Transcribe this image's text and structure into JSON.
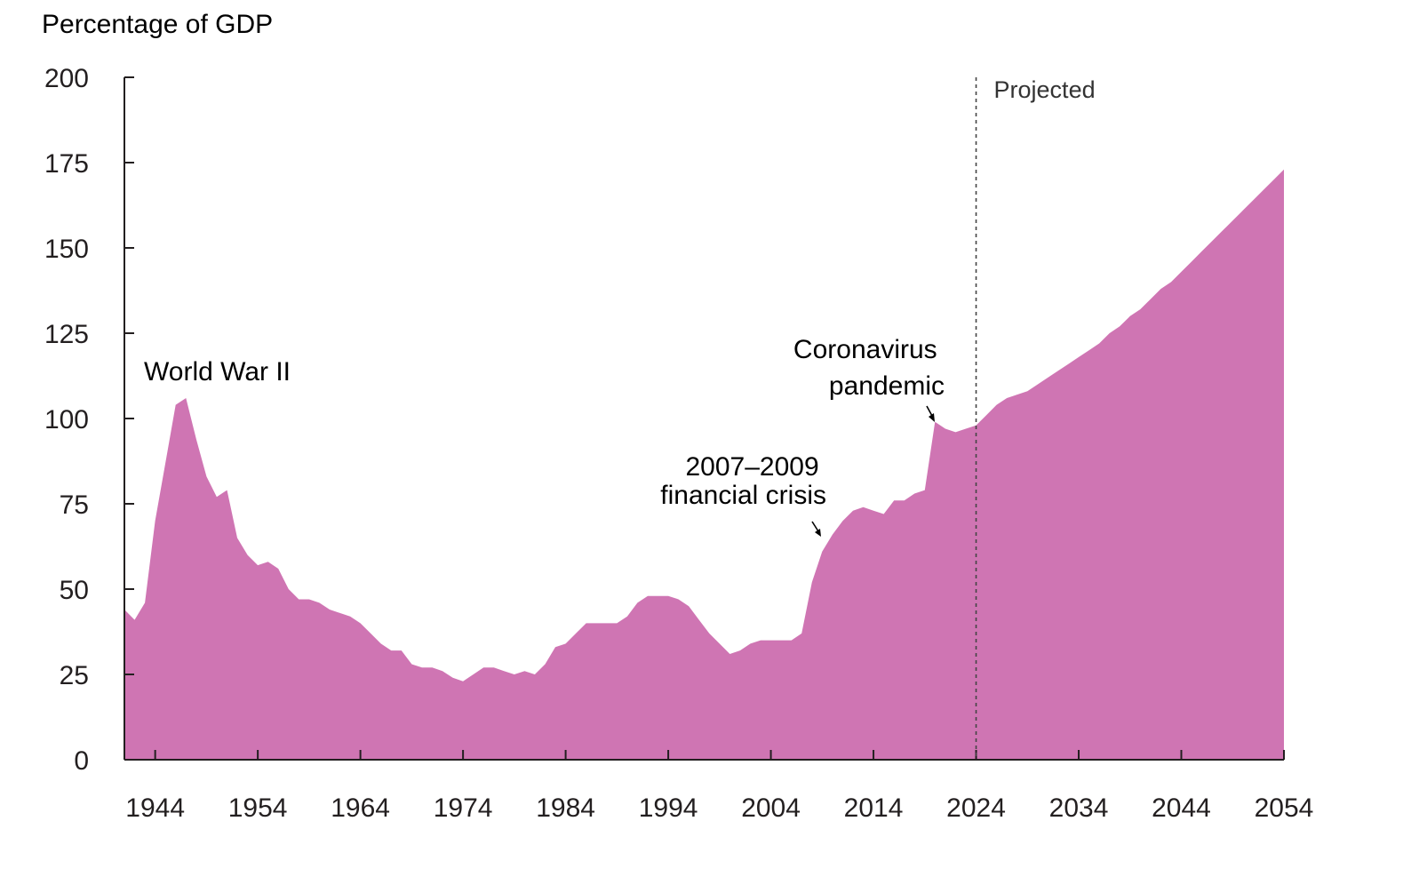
{
  "chart_data": {
    "type": "area",
    "ylabel": "Percentage of GDP",
    "xlabel": "",
    "ylim": [
      0,
      200
    ],
    "xlim": [
      1941,
      2054
    ],
    "yticks": [
      0,
      25,
      50,
      75,
      100,
      125,
      150,
      175,
      200
    ],
    "xticks": [
      1944,
      1954,
      1964,
      1974,
      1984,
      1994,
      2004,
      2014,
      2024,
      2034,
      2044,
      2054
    ],
    "grid": false,
    "fill_color": "#cf75b3",
    "projection_start": 2024,
    "projection_label": "Projected",
    "annotations": [
      {
        "id": "wwii",
        "lines": [
          "World War II"
        ],
        "x": 1946,
        "y": 106
      },
      {
        "id": "crisis",
        "lines": [
          "2007–2009",
          "financial crisis"
        ],
        "x": 2008,
        "y": 64
      },
      {
        "id": "covid",
        "lines": [
          "Coronavirus",
          "pandemic"
        ],
        "x": 2020,
        "y": 98
      }
    ],
    "x": [
      1941,
      1942,
      1943,
      1944,
      1945,
      1946,
      1947,
      1948,
      1949,
      1950,
      1951,
      1952,
      1953,
      1954,
      1955,
      1956,
      1957,
      1958,
      1959,
      1960,
      1961,
      1962,
      1963,
      1964,
      1965,
      1966,
      1967,
      1968,
      1969,
      1970,
      1971,
      1972,
      1973,
      1974,
      1975,
      1976,
      1977,
      1978,
      1979,
      1980,
      1981,
      1982,
      1983,
      1984,
      1985,
      1986,
      1987,
      1988,
      1989,
      1990,
      1991,
      1992,
      1993,
      1994,
      1995,
      1996,
      1997,
      1998,
      1999,
      2000,
      2001,
      2002,
      2003,
      2004,
      2005,
      2006,
      2007,
      2008,
      2009,
      2010,
      2011,
      2012,
      2013,
      2014,
      2015,
      2016,
      2017,
      2018,
      2019,
      2020,
      2021,
      2022,
      2023,
      2024,
      2025,
      2026,
      2027,
      2028,
      2029,
      2030,
      2031,
      2032,
      2033,
      2034,
      2035,
      2036,
      2037,
      2038,
      2039,
      2040,
      2041,
      2042,
      2043,
      2044,
      2045,
      2046,
      2047,
      2048,
      2049,
      2050,
      2051,
      2052,
      2053,
      2054
    ],
    "values": [
      44,
      41,
      46,
      70,
      87,
      104,
      106,
      94,
      83,
      77,
      79,
      65,
      60,
      57,
      58,
      56,
      50,
      47,
      47,
      46,
      44,
      43,
      42,
      40,
      37,
      34,
      32,
      32,
      28,
      27,
      27,
      26,
      24,
      23,
      25,
      27,
      27,
      26,
      25,
      26,
      25,
      28,
      33,
      34,
      37,
      40,
      40,
      40,
      40,
      42,
      46,
      48,
      48,
      48,
      47,
      45,
      41,
      37,
      34,
      31,
      32,
      34,
      35,
      35,
      35,
      35,
      37,
      52,
      61,
      66,
      70,
      73,
      74,
      73,
      72,
      76,
      76,
      78,
      79,
      99,
      97,
      96,
      97,
      98,
      101,
      104,
      106,
      107,
      108,
      110,
      112,
      114,
      116,
      118,
      120,
      122,
      125,
      127,
      130,
      132,
      135,
      138,
      140,
      143,
      146,
      149,
      152,
      155,
      158,
      161,
      164,
      167,
      170,
      173
    ]
  }
}
